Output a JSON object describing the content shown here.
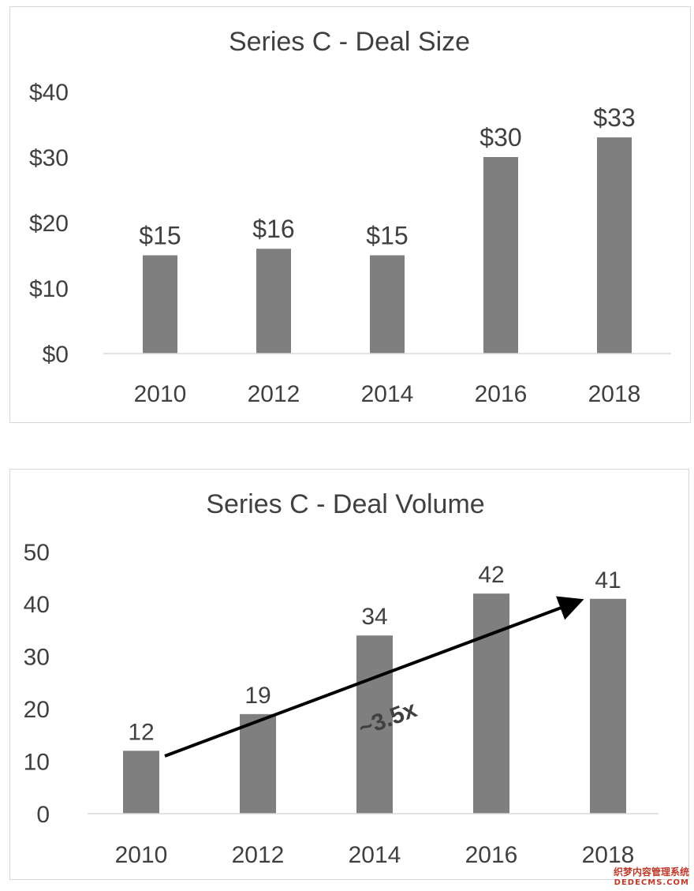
{
  "chart_data": [
    {
      "type": "bar",
      "title": "Series C - Deal Size",
      "xlabel": "",
      "ylabel": "",
      "categories": [
        "2010",
        "2012",
        "2014",
        "2016",
        "2018"
      ],
      "values": [
        15,
        16,
        15,
        30,
        33
      ],
      "data_labels": [
        "$15",
        "$16",
        "$15",
        "$30",
        "$33"
      ],
      "ylim": [
        0,
        40
      ],
      "yticks": [
        0,
        10,
        20,
        30,
        40
      ],
      "ytick_labels": [
        "$0",
        "$10",
        "$20",
        "$30",
        "$40"
      ],
      "bar_color": "#7f7f7f",
      "grid": false,
      "legend": "none"
    },
    {
      "type": "bar",
      "title": "Series C - Deal Volume",
      "xlabel": "",
      "ylabel": "",
      "categories": [
        "2010",
        "2012",
        "2014",
        "2016",
        "2018"
      ],
      "values": [
        12,
        19,
        34,
        42,
        41
      ],
      "data_labels": [
        "12",
        "19",
        "34",
        "42",
        "41"
      ],
      "ylim": [
        0,
        50
      ],
      "yticks": [
        0,
        10,
        20,
        30,
        40,
        50
      ],
      "ytick_labels": [
        "0",
        "10",
        "20",
        "30",
        "40",
        "50"
      ],
      "bar_color": "#7f7f7f",
      "grid": false,
      "legend": "none",
      "annotation": {
        "text": "~3.5x",
        "arrow_from": {
          "category": "2010",
          "value": 11
        },
        "arrow_to": {
          "category": "2018",
          "value": 39
        }
      }
    }
  ],
  "watermark": {
    "line1": "织梦内容管理系统",
    "line2": "DEDECMS.COM"
  }
}
